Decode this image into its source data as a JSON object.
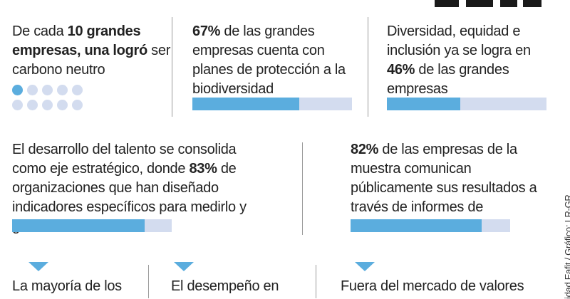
{
  "colors": {
    "accent": "#5badde",
    "track": "#d3dcef",
    "divider": "#9a9a9a"
  },
  "logo_icon": "eafit-logo-fragment",
  "block1": {
    "pre": "De cada ",
    "bold": "10 grandes empresas, una logró",
    "post": " ser carbono neutro",
    "dots_total": 10,
    "dots_filled": 1
  },
  "block2": {
    "bold": "67%",
    "text": " de las grandes empresas cuenta con planes de protección a la biodiversidad",
    "value": 0.67
  },
  "block3": {
    "pre": "Diversidad, equidad e inclusión ya se logra en ",
    "bold": "46%",
    "post": " de las grandes empresas",
    "value": 0.46
  },
  "block4": {
    "pre": "El desarrollo del talento se consolida como eje estratégico, donde ",
    "bold": "83%",
    "post": " de organizaciones que han diseñado indicadores específicos para medirlo y gestionarlo.",
    "value": 0.83
  },
  "block5": {
    "bold": "82%",
    "text": " de las empresas de la muestra comunican públicamente sus resultados a través de informes de sostenibilidad",
    "value": 0.82
  },
  "bottom": {
    "item1": "La mayoría de los",
    "item2": "El desempeño en",
    "item3": "Fuera del mercado de valores"
  },
  "credit": "idad Eafit / Gráfico: LR-GR"
}
